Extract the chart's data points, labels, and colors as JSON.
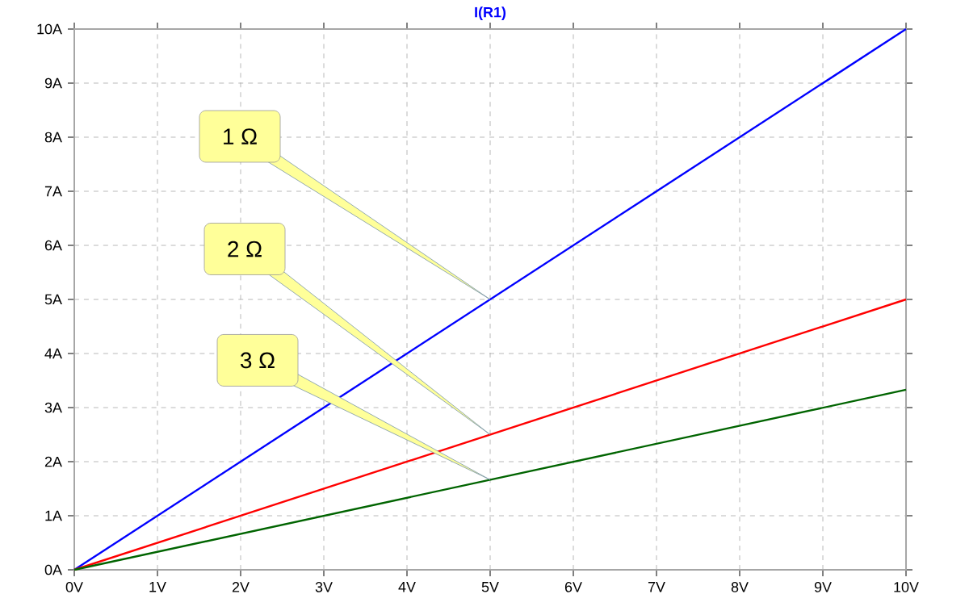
{
  "chart_data": {
    "type": "line",
    "title": "I(R1)",
    "x": [
      0,
      10
    ],
    "series": [
      {
        "color": "#0000ff",
        "values": [
          0,
          10
        ]
      },
      {
        "color": "#ff0000",
        "values": [
          0,
          5
        ]
      },
      {
        "color": "#006400",
        "values": [
          0,
          3.33
        ]
      }
    ],
    "xlim": [
      0,
      10
    ],
    "ylim": [
      0,
      10
    ],
    "xticks": [
      {
        "value": 0,
        "label": "0V"
      },
      {
        "value": 1,
        "label": "1V"
      },
      {
        "value": 2,
        "label": "2V"
      },
      {
        "value": 3,
        "label": "3V"
      },
      {
        "value": 4,
        "label": "4V"
      },
      {
        "value": 5,
        "label": "5V"
      },
      {
        "value": 6,
        "label": "6V"
      },
      {
        "value": 7,
        "label": "7V"
      },
      {
        "value": 8,
        "label": "8V"
      },
      {
        "value": 9,
        "label": "9V"
      },
      {
        "value": 10,
        "label": "10V"
      }
    ],
    "yticks": [
      {
        "value": 0,
        "label": "0A"
      },
      {
        "value": 1,
        "label": "1A"
      },
      {
        "value": 2,
        "label": "2A"
      },
      {
        "value": 3,
        "label": "3A"
      },
      {
        "value": 4,
        "label": "4A"
      },
      {
        "value": 5,
        "label": "5A"
      },
      {
        "value": 6,
        "label": "6A"
      },
      {
        "value": 7,
        "label": "7A"
      },
      {
        "value": 8,
        "label": "8A"
      },
      {
        "value": 9,
        "label": "9A"
      },
      {
        "value": 10,
        "label": "10A"
      }
    ],
    "grid": true,
    "marker": "none",
    "line_style": "solid",
    "annotations": [
      "1 Ω",
      "2 Ω",
      "3 Ω"
    ]
  }
}
